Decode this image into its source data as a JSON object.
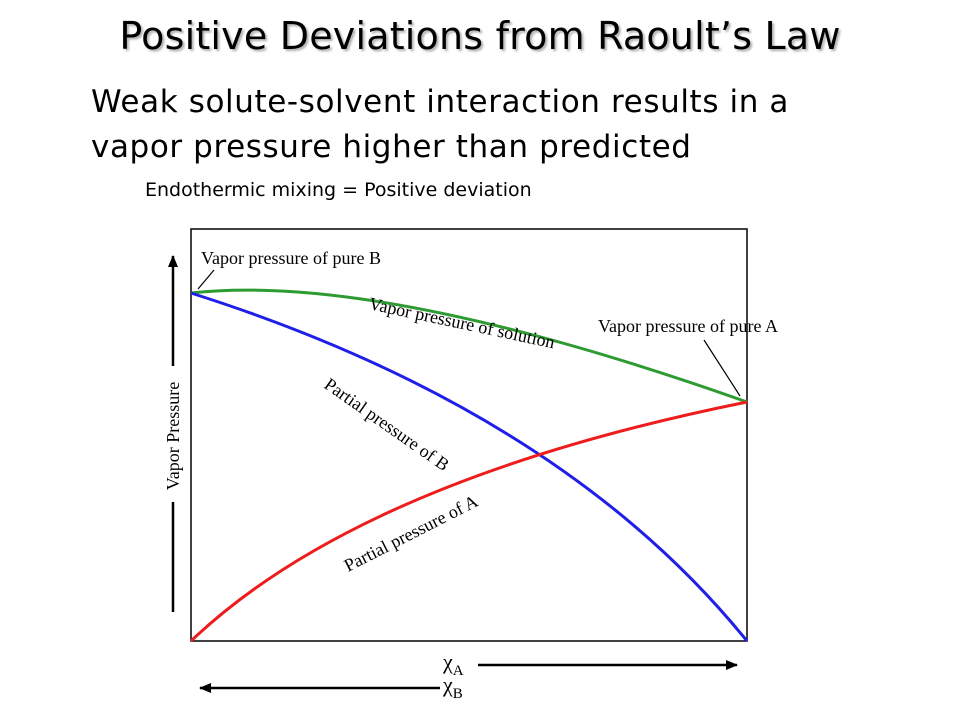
{
  "title": "Positive Deviations from Raoult’s Law",
  "body": {
    "line1": "Weak solute-solvent interaction results in a",
    "line2": "vapor pressure higher than predicted",
    "subnote": "Endothermic mixing = Positive deviation"
  },
  "diagram": {
    "y_axis_label": "Vapor Pressure",
    "x_label_top_symbol": "χ",
    "x_label_top_sub": "A",
    "x_label_bottom_symbol": "χ",
    "x_label_bottom_sub": "B",
    "labels": {
      "pure_b": "Vapor pressure of pure B",
      "pure_a": "Vapor pressure of pure A",
      "solution": "Vapor pressure of solution",
      "partial_b": "Partial pressure of B",
      "partial_a": "Partial pressure of A"
    },
    "colors": {
      "solution": "#2e9b32",
      "partial_b": "#1f1fe8",
      "partial_a": "#ee1c1c"
    }
  }
}
